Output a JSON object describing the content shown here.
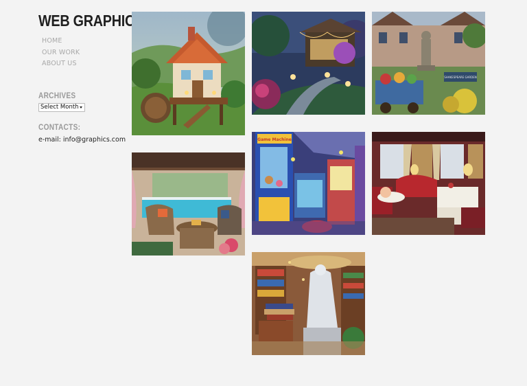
{
  "site": {
    "title": "WEB GRAPHICS"
  },
  "nav": {
    "items": [
      "HOME",
      "OUR WORK",
      "ABOUT US"
    ]
  },
  "archives": {
    "title": "ARCHIVES",
    "select_value": "Select Month"
  },
  "contacts": {
    "title": "CONTACTS:",
    "email": "e-mail: info@graphics.com"
  },
  "gallery": {
    "images": [
      {
        "subject": "cottage-with-waterwheel"
      },
      {
        "subject": "garden-gazebo-at-night"
      },
      {
        "subject": "shakespeare-garden-statue"
      },
      {
        "subject": "poolside-patio"
      },
      {
        "subject": "arcade-hall"
      },
      {
        "subject": "train-dining-car"
      },
      {
        "subject": "library-with-statue"
      }
    ],
    "garden_sign_text": "SHAKESPEARE GARDEN",
    "arcade_sign_text": "Game Machine"
  },
  "colors": {
    "background": "#f3f3f3",
    "title": "#1f1f1f",
    "nav": "#a8a8a8",
    "widget": "#9a9a9a"
  }
}
